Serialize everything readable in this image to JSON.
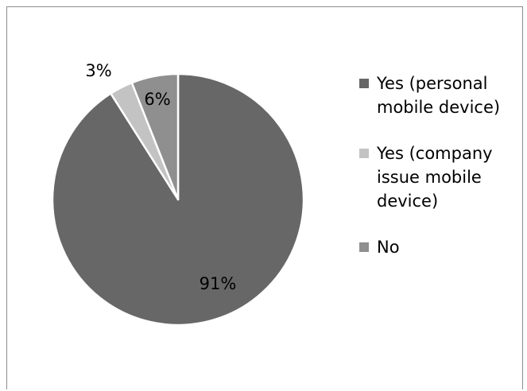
{
  "chart_data": {
    "type": "pie",
    "categories": [
      "Yes (personal mobile device)",
      "Yes (company issue mobile device)",
      "No"
    ],
    "values": [
      91,
      3,
      6
    ],
    "data_labels": [
      "91%",
      "3%",
      "6%"
    ],
    "colors": [
      "#676767",
      "#c3c3c3",
      "#8f8f8f"
    ],
    "legend_position": "right"
  },
  "legend": {
    "items": [
      {
        "label": "Yes (personal mobile device)",
        "color": "#676767"
      },
      {
        "label": "Yes (company issue mobile device)",
        "color": "#c3c3c3"
      },
      {
        "label": "No",
        "color": "#8f8f8f"
      }
    ]
  }
}
